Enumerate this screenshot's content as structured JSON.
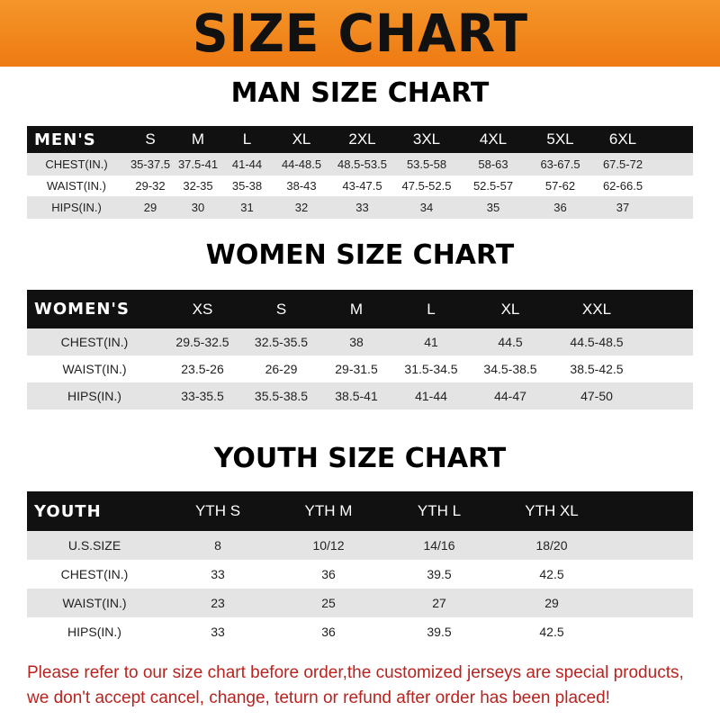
{
  "banner": {
    "title": "SIZE CHART",
    "color": "#f08a1c"
  },
  "men": {
    "title": "MAN SIZE CHART",
    "header": [
      "MEN'S",
      "S",
      "M",
      "L",
      "XL",
      "2XL",
      "3XL",
      "4XL",
      "5XL",
      "6XL"
    ],
    "rows": [
      [
        "CHEST(IN.)",
        "35-37.5",
        "37.5-41",
        "41-44",
        "44-48.5",
        "48.5-53.5",
        "53.5-58",
        "58-63",
        "63-67.5",
        "67.5-72"
      ],
      [
        "WAIST(IN.)",
        "29-32",
        "32-35",
        "35-38",
        "38-43",
        "43-47.5",
        "47.5-52.5",
        "52.5-57",
        "57-62",
        "62-66.5"
      ],
      [
        "HIPS(IN.)",
        "29",
        "30",
        "31",
        "32",
        "33",
        "34",
        "35",
        "36",
        "37"
      ]
    ]
  },
  "women": {
    "title": "WOMEN SIZE CHART",
    "header": [
      "WOMEN'S",
      "XS",
      "S",
      "M",
      "L",
      "XL",
      "XXL"
    ],
    "rows": [
      [
        "CHEST(IN.)",
        "29.5-32.5",
        "32.5-35.5",
        "38",
        "41",
        "44.5",
        "44.5-48.5"
      ],
      [
        "WAIST(IN.)",
        "23.5-26",
        "26-29",
        "29-31.5",
        "31.5-34.5",
        "34.5-38.5",
        "38.5-42.5"
      ],
      [
        "HIPS(IN.)",
        "33-35.5",
        "35.5-38.5",
        "38.5-41",
        "41-44",
        "44-47",
        "47-50"
      ]
    ]
  },
  "youth": {
    "title": "YOUTH SIZE CHART",
    "header": [
      "YOUTH",
      "YTH S",
      "YTH M",
      "YTH L",
      "YTH XL"
    ],
    "rows": [
      [
        "U.S.SIZE",
        "8",
        "10/12",
        "14/16",
        "18/20"
      ],
      [
        "CHEST(IN.)",
        "33",
        "36",
        "39.5",
        "42.5"
      ],
      [
        "WAIST(IN.)",
        "23",
        "25",
        "27",
        "29"
      ],
      [
        "HIPS(IN.)",
        "33",
        "36",
        "39.5",
        "42.5"
      ]
    ]
  },
  "note": {
    "line1": "Please refer to our size chart before order,the customized jerseys are special products,",
    "line2": "we don't accept cancel, change, teturn or refund after order has been placed!"
  }
}
